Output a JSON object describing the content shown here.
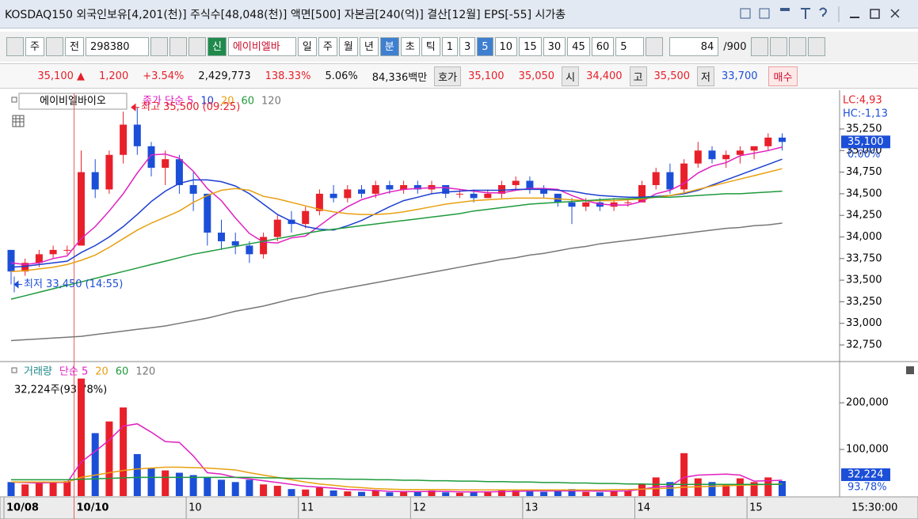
{
  "title_bar": {
    "text": "KOSDAQ150 외국인보유[4,201(천)] 주식수[48,048(천)] 액면[500] 자본금[240(억)] 결산[12월] EPS[-55] 시가총"
  },
  "toolbar": {
    "items": [
      "주",
      "전",
      "298380",
      "신",
      "에이비엘바",
      "일",
      "주",
      "월",
      "년",
      "분",
      "초",
      "틱",
      "1",
      "3",
      "5",
      "10",
      "15",
      "30",
      "45",
      "60",
      "5",
      "84",
      "/900"
    ]
  },
  "quote_bar": {
    "items": [
      "35,100 ▲",
      "1,200",
      "+3.54%",
      "2,429,773",
      "138.33%",
      "5.06%",
      "84,336백만",
      "호가",
      "35,100",
      "35,050",
      "시",
      "34,400",
      "고",
      "35,500",
      "저",
      "33,700",
      "매수"
    ]
  },
  "price_chart": {
    "stock_name": "에이비엘바이오",
    "legend": [
      "종가 단순 5",
      "10",
      "20",
      "60",
      "120"
    ],
    "lc": "LC:4,93",
    "hc": "HC:-1,13",
    "ylim": [
      32576,
      35662
    ],
    "yticks": [
      {
        "value": 35250,
        "label": "35,250"
      },
      {
        "value": 35000,
        "label": "35,000"
      },
      {
        "value": 34750,
        "label": "34,750"
      },
      {
        "value": 34500,
        "label": "34,500"
      },
      {
        "value": 34250,
        "label": "34,250"
      },
      {
        "value": 34000,
        "label": "34,000"
      },
      {
        "value": 33750,
        "label": "33,750"
      },
      {
        "value": 33500,
        "label": "33,500"
      },
      {
        "value": 33250,
        "label": "33,250"
      },
      {
        "value": 33000,
        "label": "33,000"
      },
      {
        "value": 32750,
        "label": "32,750"
      }
    ],
    "current": {
      "value": 35100,
      "label": "35,100"
    },
    "change_label": "0.00%",
    "high_note": {
      "value": 35500,
      "label": "최고 35,500 (09:25)"
    },
    "low_note": {
      "value": 33450,
      "label": "최저 33,450 (14:55)"
    },
    "candles": [
      [
        33850,
        33850,
        33450,
        33600
      ],
      [
        33600,
        33750,
        33550,
        33700
      ],
      [
        33700,
        33850,
        33650,
        33800
      ],
      [
        33800,
        33900,
        33750,
        33850
      ],
      [
        33850,
        33900,
        33800,
        33850
      ],
      [
        33900,
        35000,
        33900,
        34750
      ],
      [
        34750,
        34900,
        34450,
        34550
      ],
      [
        34550,
        35000,
        34500,
        34950
      ],
      [
        34950,
        35450,
        34850,
        35300
      ],
      [
        35300,
        35500,
        34950,
        35050
      ],
      [
        35050,
        35100,
        34700,
        34800
      ],
      [
        34800,
        35000,
        34600,
        34900
      ],
      [
        34900,
        34950,
        34500,
        34600
      ],
      [
        34600,
        34750,
        34300,
        34500
      ],
      [
        34500,
        34500,
        33900,
        34050
      ],
      [
        34050,
        34200,
        33850,
        33950
      ],
      [
        33950,
        34050,
        33800,
        33900
      ],
      [
        33900,
        33950,
        33700,
        33800
      ],
      [
        33800,
        34050,
        33750,
        34000
      ],
      [
        34000,
        34250,
        33950,
        34200
      ],
      [
        34200,
        34300,
        34050,
        34150
      ],
      [
        34150,
        34350,
        34100,
        34300
      ],
      [
        34300,
        34550,
        34250,
        34500
      ],
      [
        34500,
        34600,
        34400,
        34450
      ],
      [
        34450,
        34600,
        34400,
        34550
      ],
      [
        34550,
        34600,
        34450,
        34500
      ],
      [
        34500,
        34650,
        34450,
        34600
      ],
      [
        34600,
        34650,
        34500,
        34550
      ],
      [
        34550,
        34650,
        34500,
        34600
      ],
      [
        34600,
        34650,
        34500,
        34550
      ],
      [
        34550,
        34650,
        34500,
        34600
      ],
      [
        34600,
        34600,
        34450,
        34500
      ],
      [
        34500,
        34550,
        34450,
        34500
      ],
      [
        34500,
        34550,
        34400,
        34450
      ],
      [
        34450,
        34550,
        34450,
        34500
      ],
      [
        34500,
        34650,
        34450,
        34600
      ],
      [
        34600,
        34700,
        34550,
        34650
      ],
      [
        34650,
        34700,
        34500,
        34550
      ],
      [
        34550,
        34600,
        34450,
        34500
      ],
      [
        34500,
        34500,
        34350,
        34400
      ],
      [
        34400,
        34450,
        34150,
        34350
      ],
      [
        34350,
        34450,
        34300,
        34400
      ],
      [
        34400,
        34450,
        34300,
        34350
      ],
      [
        34350,
        34450,
        34300,
        34400
      ],
      [
        34400,
        34450,
        34350,
        34400
      ],
      [
        34400,
        34650,
        34400,
        34600
      ],
      [
        34600,
        34800,
        34550,
        34750
      ],
      [
        34750,
        34850,
        34500,
        34550
      ],
      [
        34550,
        34900,
        34500,
        34850
      ],
      [
        34850,
        35100,
        34800,
        35000
      ],
      [
        35000,
        35050,
        34850,
        34900
      ],
      [
        34900,
        35000,
        34800,
        34950
      ],
      [
        34950,
        35050,
        34850,
        35000
      ],
      [
        35000,
        35050,
        34900,
        35050
      ],
      [
        35050,
        35200,
        35000,
        35150
      ],
      [
        35150,
        35200,
        35000,
        35100
      ]
    ],
    "ma": [
      {
        "color": "#e020c0",
        "values": [
          33700,
          33680,
          33700,
          33750,
          33780,
          33980,
          34120,
          34300,
          34500,
          34740,
          34950,
          34960,
          34910,
          34760,
          34560,
          34420,
          34220,
          34040,
          33940,
          33930,
          33990,
          34010,
          34130,
          34250,
          34350,
          34430,
          34480,
          34520,
          34550,
          34560,
          34570,
          34570,
          34550,
          34530,
          34510,
          34510,
          34540,
          34560,
          34560,
          34550,
          34480,
          34420,
          34380,
          34370,
          34370,
          34410,
          34500,
          34540,
          34620,
          34740,
          34820,
          34860,
          34940,
          34970,
          35000,
          35040
        ]
      },
      {
        "color": "#1c3fd0",
        "values": [
          33650,
          33660,
          33680,
          33700,
          33720,
          33820,
          33900,
          34000,
          34120,
          34260,
          34410,
          34530,
          34620,
          34660,
          34660,
          34640,
          34590,
          34500,
          34380,
          34260,
          34180,
          34120,
          34090,
          34080,
          34130,
          34190,
          34270,
          34350,
          34420,
          34460,
          34500,
          34520,
          34530,
          34540,
          34540,
          34540,
          34550,
          34550,
          34550,
          34540,
          34530,
          34500,
          34480,
          34470,
          34460,
          34460,
          34470,
          34480,
          34500,
          34540,
          34600,
          34660,
          34720,
          34780,
          34840,
          34900
        ]
      },
      {
        "color": "#e8a010",
        "values": [
          33600,
          33610,
          33630,
          33650,
          33680,
          33730,
          33790,
          33880,
          33980,
          34080,
          34160,
          34230,
          34300,
          34400,
          34480,
          34540,
          34560,
          34540,
          34470,
          34440,
          34400,
          34360,
          34320,
          34290,
          34270,
          34260,
          34260,
          34270,
          34290,
          34320,
          34350,
          34380,
          34400,
          34420,
          34430,
          34440,
          34450,
          34450,
          34450,
          34440,
          34430,
          34420,
          34420,
          34420,
          34430,
          34440,
          34460,
          34480,
          34510,
          34550,
          34590,
          34630,
          34670,
          34710,
          34750,
          34790
        ]
      },
      {
        "color": "#1e9a3c",
        "values": [
          33280,
          33320,
          33360,
          33400,
          33440,
          33480,
          33520,
          33560,
          33600,
          33640,
          33680,
          33720,
          33760,
          33800,
          33830,
          33860,
          33890,
          33920,
          33950,
          33980,
          34010,
          34040,
          34070,
          34090,
          34110,
          34130,
          34150,
          34170,
          34190,
          34210,
          34230,
          34250,
          34270,
          34300,
          34320,
          34340,
          34360,
          34380,
          34390,
          34400,
          34410,
          34420,
          34430,
          34440,
          34440,
          34450,
          34460,
          34460,
          34470,
          34480,
          34490,
          34500,
          34500,
          34510,
          34520,
          34530
        ]
      },
      {
        "color": "#777777",
        "values": [
          32800,
          32810,
          32820,
          32830,
          32840,
          32850,
          32870,
          32890,
          32910,
          32930,
          32950,
          32970,
          33000,
          33030,
          33060,
          33100,
          33140,
          33170,
          33200,
          33240,
          33280,
          33310,
          33350,
          33380,
          33410,
          33440,
          33470,
          33500,
          33530,
          33560,
          33590,
          33620,
          33650,
          33680,
          33710,
          33740,
          33760,
          33790,
          33810,
          33840,
          33870,
          33890,
          33920,
          33940,
          33960,
          33980,
          34000,
          34020,
          34040,
          34060,
          34080,
          34100,
          34110,
          34130,
          34140,
          34160
        ]
      }
    ]
  },
  "volume_chart": {
    "legend": [
      "거래량",
      "단순 5",
      "20",
      "60",
      "120"
    ],
    "summary": "32,224주(93,78%)",
    "ylim": [
      0,
      280000
    ],
    "yticks": [
      {
        "value": 200000,
        "label": "200,000"
      },
      {
        "value": 100000,
        "label": "100,000"
      }
    ],
    "current": {
      "value": 32224,
      "label": "32,224"
    },
    "ratio_label": "93.78%",
    "values": [
      30000,
      25000,
      28000,
      30000,
      32000,
      252000,
      135000,
      160000,
      190000,
      90000,
      60000,
      55000,
      50000,
      45000,
      40000,
      35000,
      30000,
      35000,
      25000,
      22000,
      15000,
      14000,
      18000,
      12000,
      10000,
      9000,
      11000,
      8000,
      9000,
      10000,
      12000,
      8000,
      7000,
      9000,
      8000,
      14000,
      12000,
      10000,
      9000,
      11000,
      15000,
      9000,
      8000,
      10000,
      12000,
      25000,
      40000,
      30000,
      92000,
      38000,
      30000,
      25000,
      38000,
      30000,
      40000,
      32224
    ],
    "ma": [
      {
        "color": "#e020c0",
        "values": [
          30000,
          29000,
          28000,
          29000,
          29000,
          73000,
          96000,
          120000,
          150000,
          155000,
          137000,
          117000,
          115000,
          86000,
          50000,
          47000,
          40000,
          37000,
          33000,
          29000,
          25000,
          21000,
          19000,
          17000,
          14000,
          13000,
          12000,
          10000,
          9500,
          9500,
          10000,
          10000,
          9000,
          9000,
          9000,
          9500,
          10000,
          11000,
          11000,
          11000,
          11000,
          11000,
          10500,
          10500,
          11000,
          15000,
          19000,
          21000,
          40000,
          45000,
          46000,
          47000,
          45000,
          32000,
          33000,
          34000
        ]
      },
      {
        "color": "#e8a010",
        "values": [
          30000,
          30000,
          30000,
          30000,
          30000,
          40000,
          45000,
          50000,
          55000,
          58000,
          60000,
          62000,
          62000,
          61000,
          60000,
          58000,
          56000,
          50000,
          45000,
          40000,
          35000,
          30000,
          26000,
          23000,
          20000,
          18000,
          16000,
          15000,
          14000,
          14000,
          14000,
          14000,
          13000,
          13000,
          13000,
          13000,
          13000,
          13000,
          13000,
          13000,
          13000,
          13000,
          13000,
          14000,
          14000,
          15000,
          16000,
          17000,
          19000,
          20000,
          21000,
          22000,
          23000,
          24000,
          25000,
          26000
        ]
      },
      {
        "color": "#1e9a3c",
        "values": [
          35000,
          35000,
          35000,
          35000,
          35000,
          36000,
          37000,
          38000,
          39000,
          40000,
          40000,
          40000,
          40000,
          40000,
          40000,
          40000,
          40000,
          40000,
          39000,
          39000,
          38000,
          38000,
          37000,
          37000,
          36000,
          36000,
          35000,
          35000,
          34000,
          34000,
          33000,
          33000,
          32000,
          32000,
          31000,
          31000,
          30000,
          30000,
          29000,
          29000,
          28000,
          28000,
          27000,
          27000,
          26000,
          26000,
          25000,
          25000,
          25000,
          25000,
          25000,
          25000,
          25000,
          25000,
          25000,
          25000
        ]
      }
    ]
  },
  "x_axis": {
    "labels": [
      "10/08",
      "10/10",
      "10",
      "11",
      "12",
      "13",
      "14",
      "15"
    ],
    "time": "15:30:00"
  }
}
